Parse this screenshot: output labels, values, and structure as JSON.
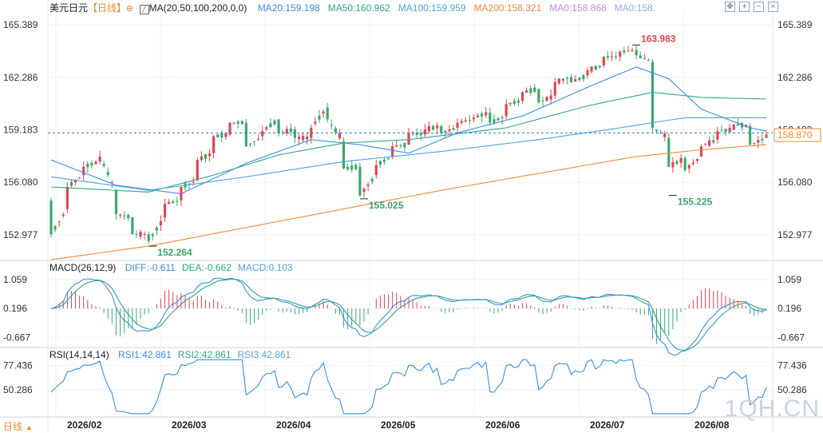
{
  "header": {
    "symbol": "美元日元",
    "period_tag": "【日线】",
    "ma_params": "MA(20,50,100,200,0,0)",
    "ma_values": [
      {
        "text": "MA20:159.198",
        "color": "#3a8ee6"
      },
      {
        "text": "MA50:160.962",
        "color": "#2fa58c"
      },
      {
        "text": "MA100:159.959",
        "color": "#4fa3d8"
      },
      {
        "text": "MA200:158.321",
        "color": "#f0883e"
      },
      {
        "text": "MA0:158.868",
        "color": "#c38ad0"
      },
      {
        "text": "MA0:158.",
        "color": "#9aa7d8"
      }
    ]
  },
  "toolbar": {
    "icons": [
      "move-icon",
      "zoom-in-icon",
      "zoom-out-icon",
      "close-icon"
    ]
  },
  "price_panel": {
    "ticks": [
      "165.389",
      "162.286",
      "159.183",
      "156.080",
      "152.977"
    ],
    "current_price": "158.870",
    "annotations": {
      "high": "163.983",
      "low1": "152.264",
      "low2": "155.025",
      "low3": "155.225"
    }
  },
  "macd_panel": {
    "title": "MACD(26,12,9)",
    "values": [
      {
        "text": "DIFF:-0.611",
        "color": "#3a8ee6"
      },
      {
        "text": "DEA:-0.662",
        "color": "#2fa58c"
      },
      {
        "text": "MACD:0.103",
        "color": "#4fa3d8"
      }
    ],
    "ticks": [
      "1.059",
      "0.196",
      "-0.667"
    ]
  },
  "rsi_panel": {
    "title": "RSI(14,14,14)",
    "values": [
      {
        "text": "RSI1:42.861",
        "color": "#3a8ee6"
      },
      {
        "text": "RSI2:42.861",
        "color": "#2fa58c"
      },
      {
        "text": "RSI3:42.861",
        "color": "#4fa3d8"
      }
    ],
    "ticks": [
      "77.436",
      "50.286"
    ]
  },
  "footer": {
    "period_button": "日线",
    "months": [
      "2026/02",
      "2026/03",
      "2026/04",
      "2026/05",
      "2026/06",
      "2026/07",
      "2026/08"
    ]
  },
  "watermark": "1QH.CN",
  "chart_data": {
    "type": "candlestick",
    "ylim": [
      151.5,
      166.2
    ],
    "keypoints": [
      {
        "o": 155.0,
        "c": 153.0
      },
      {
        "o": 154.5,
        "c": 155.8
      },
      {
        "o": 156.5,
        "c": 157.0
      },
      {
        "o": 157.3,
        "c": 157.6
      },
      {
        "o": 155.6,
        "c": 154.2
      },
      {
        "o": 154.0,
        "c": 153.0
      },
      {
        "o": 153.0,
        "c": 152.6
      },
      {
        "o": 154.0,
        "c": 154.8
      },
      {
        "o": 155.0,
        "c": 155.8
      },
      {
        "o": 156.2,
        "c": 157.4
      },
      {
        "o": 157.8,
        "c": 158.8
      },
      {
        "o": 158.9,
        "c": 159.6
      },
      {
        "o": 159.6,
        "c": 158.2
      },
      {
        "o": 158.8,
        "c": 159.1
      },
      {
        "o": 159.8,
        "c": 159.0
      },
      {
        "o": 159.2,
        "c": 158.7
      },
      {
        "o": 158.7,
        "c": 159.3
      },
      {
        "o": 160.5,
        "c": 159.8
      },
      {
        "o": 158.5,
        "c": 156.9
      },
      {
        "o": 157.0,
        "c": 155.3
      },
      {
        "o": 156.5,
        "c": 157.1
      },
      {
        "o": 157.6,
        "c": 158.2
      },
      {
        "o": 158.3,
        "c": 159.0
      },
      {
        "o": 158.9,
        "c": 159.2
      },
      {
        "o": 159.4,
        "c": 159.0
      },
      {
        "o": 159.3,
        "c": 159.6
      },
      {
        "o": 159.8,
        "c": 159.9
      },
      {
        "o": 160.2,
        "c": 159.6
      },
      {
        "o": 160.0,
        "c": 160.7
      },
      {
        "o": 160.9,
        "c": 161.4
      },
      {
        "o": 161.6,
        "c": 160.8
      },
      {
        "o": 161.2,
        "c": 162.0
      },
      {
        "o": 162.3,
        "c": 162.0
      },
      {
        "o": 162.4,
        "c": 162.7
      },
      {
        "o": 163.0,
        "c": 163.5
      },
      {
        "o": 163.5,
        "c": 163.8
      },
      {
        "o": 163.9,
        "c": 163.6
      },
      {
        "o": 163.2,
        "c": 159.3
      },
      {
        "o": 158.7,
        "c": 157.0
      },
      {
        "o": 157.5,
        "c": 156.8
      },
      {
        "o": 157.6,
        "c": 158.2
      },
      {
        "o": 158.6,
        "c": 159.1
      },
      {
        "o": 159.2,
        "c": 159.5
      },
      {
        "o": 159.4,
        "c": 158.3
      },
      {
        "o": 158.7,
        "c": 158.9
      }
    ],
    "series": [
      {
        "name": "MA20",
        "color": "#3a8ee6",
        "keys": [
          [
            0,
            157.4
          ],
          [
            4,
            155.9
          ],
          [
            8,
            155.4
          ],
          [
            12,
            157.2
          ],
          [
            16,
            158.6
          ],
          [
            19,
            158.3
          ],
          [
            22,
            157.8
          ],
          [
            25,
            159.0
          ],
          [
            29,
            160.0
          ],
          [
            33,
            161.7
          ],
          [
            36,
            162.9
          ],
          [
            38,
            162.2
          ],
          [
            40,
            160.4
          ],
          [
            43,
            159.3
          ],
          [
            44,
            159.1
          ]
        ]
      },
      {
        "name": "MA50",
        "color": "#2fa58c",
        "keys": [
          [
            0,
            155.8
          ],
          [
            6,
            155.5
          ],
          [
            10,
            156.5
          ],
          [
            14,
            157.7
          ],
          [
            18,
            158.4
          ],
          [
            22,
            158.6
          ],
          [
            28,
            159.3
          ],
          [
            33,
            160.6
          ],
          [
            37,
            161.4
          ],
          [
            40,
            161.1
          ],
          [
            44,
            161.0
          ]
        ]
      },
      {
        "name": "MA100",
        "color": "#4fa3d8",
        "keys": [
          [
            0,
            156.4
          ],
          [
            6,
            155.6
          ],
          [
            12,
            156.4
          ],
          [
            18,
            157.3
          ],
          [
            24,
            157.9
          ],
          [
            30,
            158.6
          ],
          [
            35,
            159.3
          ],
          [
            39,
            159.9
          ],
          [
            44,
            159.9
          ]
        ]
      },
      {
        "name": "MA200",
        "color": "#f0883e",
        "keys": [
          [
            0,
            151.5
          ],
          [
            6,
            152.3
          ],
          [
            12,
            153.4
          ],
          [
            18,
            154.5
          ],
          [
            24,
            155.6
          ],
          [
            30,
            156.6
          ],
          [
            36,
            157.6
          ],
          [
            40,
            158.0
          ],
          [
            44,
            158.3
          ]
        ]
      }
    ]
  }
}
